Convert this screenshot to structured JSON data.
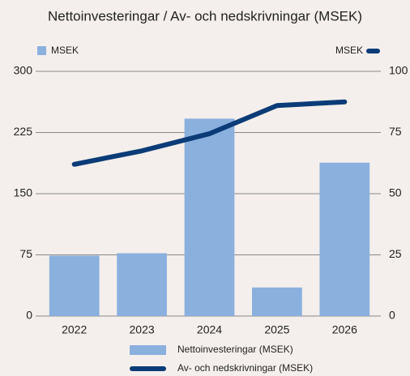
{
  "chart_data": {
    "type": "bar",
    "title": "Nettoinvesteringar / Av- och nedskrivningar (MSEK)",
    "y_label": "MSEK",
    "y2_label": "MSEK",
    "categories": [
      "2022",
      "2023",
      "2024",
      "2025",
      "2026"
    ],
    "series": [
      {
        "name": "Nettoinvesteringar (MSEK)",
        "type": "bar",
        "color": "#8ab0de",
        "values": [
          74,
          77,
          242,
          35,
          188
        ]
      },
      {
        "name": "Av- och nedskrivningar (MSEK)",
        "type": "line",
        "axis": "y2",
        "color": "#0b3c78",
        "values": [
          62,
          67.5,
          74.5,
          86,
          87.5
        ]
      }
    ],
    "ylim": [
      0,
      300
    ],
    "yticks": [
      0,
      75,
      150,
      225,
      300
    ],
    "y2lim": [
      0,
      100
    ],
    "y2ticks": [
      0,
      25,
      50,
      75,
      100
    ],
    "grid": true
  }
}
